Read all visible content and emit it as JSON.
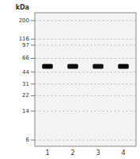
{
  "chart_data": {
    "type": "gel",
    "title": "kDa",
    "categories": [
      "1",
      "2",
      "3",
      "4"
    ],
    "values": [
      52,
      52,
      52,
      52
    ],
    "intensity": [
      0.88,
      0.78,
      0.72,
      0.88
    ],
    "log": "y",
    "ylim": [
      4.99,
      251.8
    ],
    "yticks": [
      200,
      116,
      97,
      66,
      44,
      31,
      22,
      14,
      6
    ],
    "grid": true
  }
}
